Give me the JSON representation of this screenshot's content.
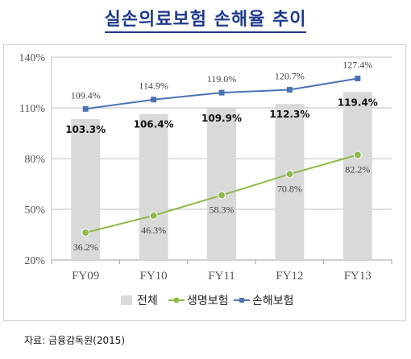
{
  "title": "실손의료보험 손해율 추이",
  "source": "자료: 금융감독원(2015)",
  "chart_data": {
    "type": "bar",
    "title": "실손의료보험 손해율 추이",
    "categories": [
      "FY09",
      "FY10",
      "FY11",
      "FY12",
      "FY13"
    ],
    "y_ticks": [
      "20%",
      "50%",
      "80%",
      "110%",
      "140%"
    ],
    "ylim": [
      20,
      140
    ],
    "grid": true,
    "legend_position": "bottom",
    "series": [
      {
        "name": "전체",
        "type": "bar",
        "color": "#d9d9d9",
        "values": [
          103.3,
          106.4,
          109.9,
          112.3,
          119.4
        ],
        "labels": [
          "103.3%",
          "106.4%",
          "109.9%",
          "112.3%",
          "119.4%"
        ]
      },
      {
        "name": "생명보험",
        "type": "line",
        "color": "#8fb94a",
        "values": [
          36.2,
          46.3,
          58.3,
          70.8,
          82.2
        ],
        "labels": [
          "36.2%",
          "46.3%",
          "58.3%",
          "70.8%",
          "82.2%"
        ]
      },
      {
        "name": "손해보험",
        "type": "line",
        "color": "#4a73b5",
        "values": [
          109.4,
          114.9,
          119.0,
          120.7,
          127.4
        ],
        "labels": [
          "109.4%",
          "114.9%",
          "119.0%",
          "120.7%",
          "127.4%"
        ]
      }
    ]
  }
}
